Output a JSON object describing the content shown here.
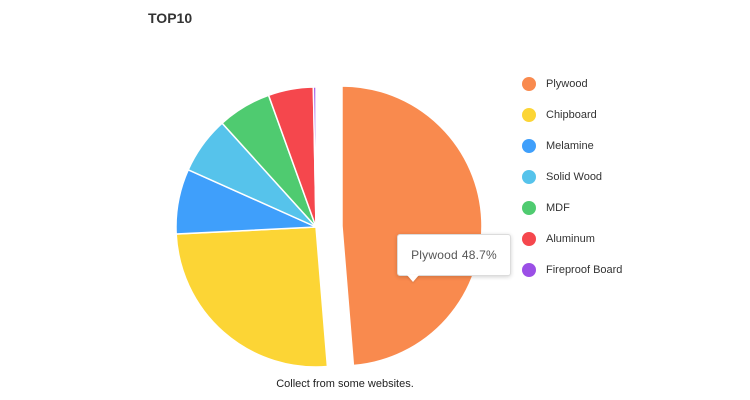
{
  "chart_data": {
    "type": "pie",
    "title": "TOP10",
    "caption": "Collect from some websites.",
    "legend_position": "right",
    "slices": [
      {
        "label": "Plywood",
        "value": 48.7,
        "color": "#F98A4E"
      },
      {
        "label": "Chipboard",
        "value": 25.5,
        "color": "#FCD535"
      },
      {
        "label": "Melamine",
        "value": 7.5,
        "color": "#3F9FFB"
      },
      {
        "label": "Solid Wood",
        "value": 6.6,
        "color": "#56C3EB"
      },
      {
        "label": "MDF",
        "value": 6.2,
        "color": "#4FCB70"
      },
      {
        "label": "Aluminum",
        "value": 5.2,
        "color": "#F5474D"
      },
      {
        "label": "Fireproof Board",
        "value": 0.3,
        "color": "#9B4FE6"
      }
    ],
    "tooltip": {
      "label": "Plywood",
      "value_text": "48.7%"
    }
  }
}
